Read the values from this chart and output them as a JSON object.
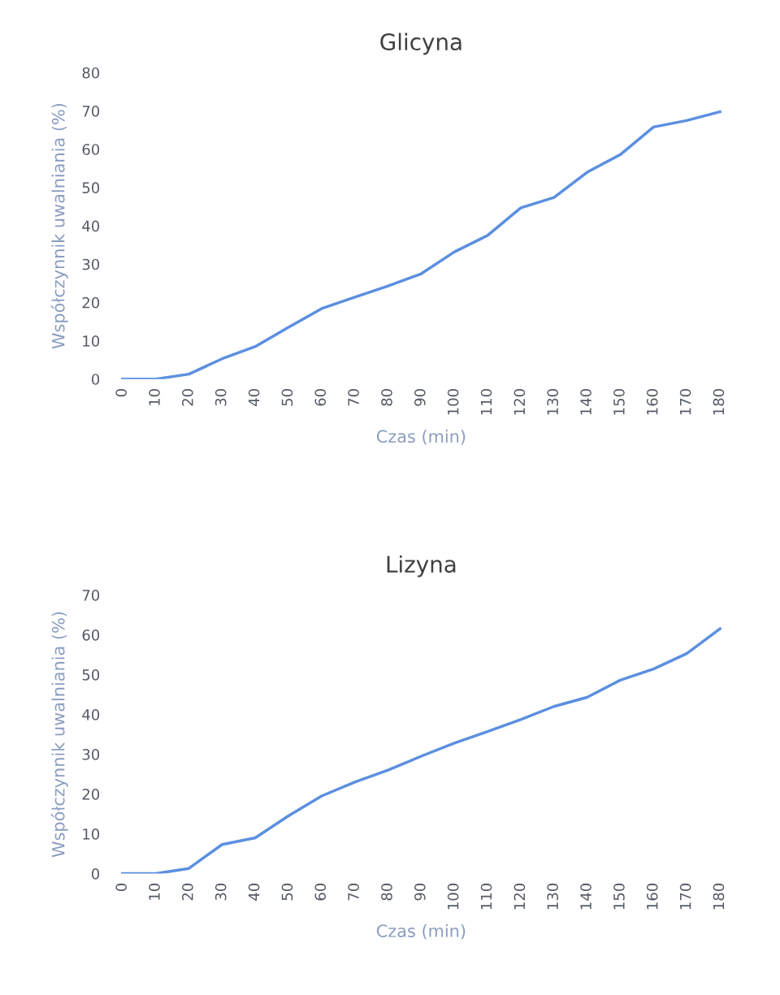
{
  "chart_data": [
    {
      "type": "line",
      "title": "Glicyna",
      "xlabel": "Czas (min)",
      "ylabel": "Współczynnik uwalniania (%)",
      "categories": [
        "0",
        "10",
        "20",
        "30",
        "40",
        "50",
        "60",
        "70",
        "80",
        "90",
        "100",
        "110",
        "120",
        "130",
        "140",
        "150",
        "160",
        "170",
        "180"
      ],
      "series": [
        {
          "color": "#5b8fe0",
          "values": [
            0,
            0,
            1.3,
            5.3,
            8.5,
            13.5,
            18.4,
            21.4,
            24.3,
            27.5,
            33.2,
            37.5,
            44.7,
            47.4,
            54,
            58.6,
            65.8,
            67.5,
            69.8
          ]
        }
      ],
      "ylim": [
        0,
        80
      ],
      "yticks": [
        0,
        10,
        20,
        30,
        40,
        50,
        60,
        70,
        80
      ],
      "grid": false,
      "marker": "none",
      "line_style": "solid"
    },
    {
      "type": "line",
      "title": "Lizyna",
      "xlabel": "Czas (min)",
      "ylabel": "Współczynnik uwalniania (%)",
      "categories": [
        "0",
        "10",
        "20",
        "30",
        "40",
        "50",
        "60",
        "70",
        "80",
        "90",
        "100",
        "110",
        "120",
        "130",
        "140",
        "150",
        "160",
        "170",
        "180"
      ],
      "series": [
        {
          "color": "#5b8fe0",
          "values": [
            0,
            0,
            1.3,
            7.3,
            9,
            14.5,
            19.5,
            23,
            26,
            29.5,
            32.8,
            35.7,
            38.7,
            42,
            44.3,
            48.6,
            51.4,
            55.3,
            61.5
          ]
        }
      ],
      "ylim": [
        0,
        70
      ],
      "yticks": [
        0,
        10,
        20,
        30,
        40,
        50,
        60,
        70
      ],
      "grid": false,
      "marker": "none",
      "line_style": "solid"
    }
  ]
}
